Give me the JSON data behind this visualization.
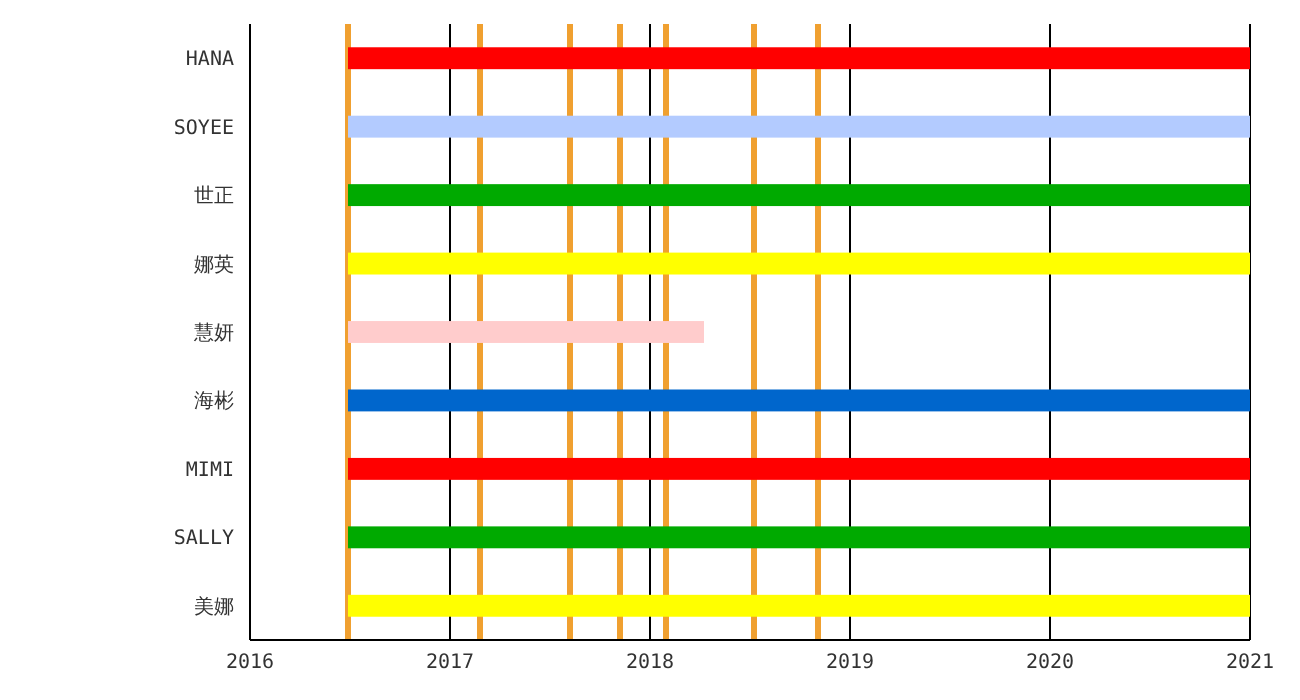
{
  "chart_data": {
    "type": "bar",
    "orientation": "horizontal",
    "categories": [
      "HANA",
      "SOYEE",
      "世正",
      "娜英",
      "慧妍",
      "海彬",
      "MIMI",
      "SALLY",
      "美娜"
    ],
    "base": [
      2016.49,
      2016.49,
      2016.49,
      2016.49,
      2016.49,
      2016.49,
      2016.49,
      2016.49,
      2016.49
    ],
    "values": [
      4.51,
      4.51,
      4.51,
      4.51,
      1.78,
      4.51,
      4.51,
      4.51,
      4.51
    ],
    "colors": [
      "#ff0000",
      "#b3cbff",
      "#00aa00",
      "#ffff00",
      "#ffcccc",
      "#0066cc",
      "#ff0000",
      "#00aa00",
      "#ffff00"
    ],
    "xlim": [
      2016,
      2021
    ],
    "xticks": [
      2016,
      2017,
      2018,
      2019,
      2020,
      2021
    ],
    "grid": "x",
    "ref_lines": [
      {
        "axis": "x",
        "value": 2016.49,
        "color": "#f0a030"
      },
      {
        "axis": "x",
        "value": 2017.15,
        "color": "#f0a030"
      },
      {
        "axis": "x",
        "value": 2017.6,
        "color": "#f0a030"
      },
      {
        "axis": "x",
        "value": 2017.85,
        "color": "#f0a030"
      },
      {
        "axis": "x",
        "value": 2018.08,
        "color": "#f0a030"
      },
      {
        "axis": "x",
        "value": 2018.52,
        "color": "#f0a030"
      },
      {
        "axis": "x",
        "value": 2018.84,
        "color": "#f0a030"
      }
    ]
  }
}
